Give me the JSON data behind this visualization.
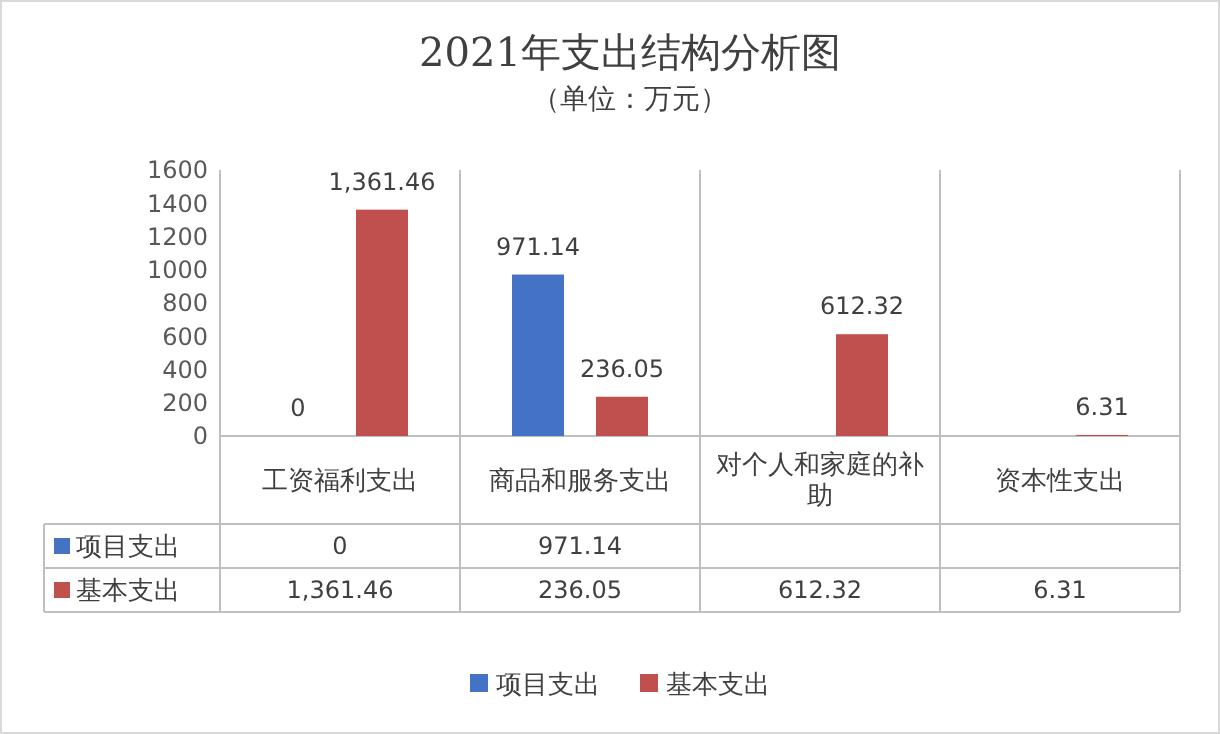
{
  "chart_data": {
    "type": "bar",
    "title": "2021年支出结构分析图",
    "subtitle": "（单位：万元）",
    "categories": [
      "工资福利支出",
      "商品和服务支出",
      "对个人和家庭的补助",
      "资本性支出"
    ],
    "series": [
      {
        "name": "项目支出",
        "color": "#4472c4",
        "values": [
          0,
          971.14,
          null,
          null
        ],
        "value_labels": [
          "0",
          "971.14",
          null,
          null
        ]
      },
      {
        "name": "基本支出",
        "color": "#c0504d",
        "values": [
          1361.46,
          236.05,
          612.32,
          6.31
        ],
        "value_labels": [
          "1,361.46",
          "236.05",
          "612.32",
          "6.31"
        ]
      }
    ],
    "ylim": [
      0,
      1600
    ],
    "yticks": [
      0,
      200,
      400,
      600,
      800,
      1000,
      1200,
      1400,
      1600
    ],
    "legend": "bottom"
  }
}
